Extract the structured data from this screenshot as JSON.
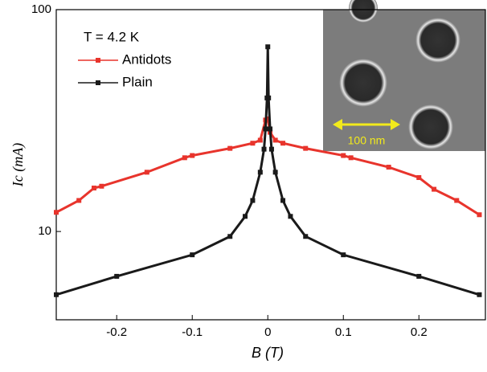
{
  "chart_data": {
    "type": "line",
    "annotation": "T = 4.2 K",
    "x_label": "B (T)",
    "y_label": "Ic (mA)",
    "inset_label": "100 nm",
    "log_y": true,
    "legend": "upper left",
    "xlim": [
      -0.28,
      0.288
    ],
    "ylim": [
      4,
      100
    ],
    "xticks": [
      -0.2,
      -0.1,
      0,
      0.1,
      0.2
    ],
    "yticks": [
      10,
      100
    ],
    "series": [
      {
        "name": "Antidots",
        "color": "#e8342c",
        "x": [
          -0.28,
          -0.25,
          -0.23,
          -0.22,
          -0.16,
          -0.11,
          -0.1,
          -0.05,
          -0.02,
          -0.01,
          -0.003,
          0,
          0.003,
          0.01,
          0.02,
          0.05,
          0.1,
          0.11,
          0.16,
          0.2,
          0.22,
          0.25,
          0.28
        ],
        "values": [
          12.2,
          13.8,
          15.7,
          16,
          18.5,
          21.5,
          22,
          23.7,
          25,
          25.8,
          31.8,
          32.2,
          28,
          25.8,
          25,
          23.7,
          22,
          21.5,
          19.5,
          17.5,
          15.5,
          13.8,
          11.9
        ]
      },
      {
        "name": "Plain",
        "color": "#1a1a1a",
        "x": [
          -0.28,
          -0.2,
          -0.1,
          -0.05,
          -0.03,
          -0.02,
          -0.01,
          -0.005,
          -0.003,
          -0.001,
          0,
          0.001,
          0.003,
          0.005,
          0.01,
          0.02,
          0.03,
          0.05,
          0.1,
          0.2,
          0.28
        ],
        "values": [
          5.19,
          6.28,
          7.85,
          9.5,
          11.7,
          13.8,
          18.5,
          23.5,
          29,
          40,
          68,
          40,
          29,
          23.5,
          18.5,
          13.8,
          11.7,
          9.5,
          7.85,
          6.28,
          5.19
        ]
      }
    ]
  }
}
